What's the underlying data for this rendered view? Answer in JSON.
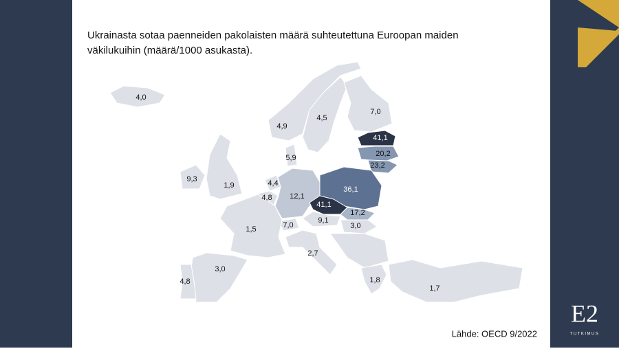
{
  "title": "Ukrainasta sotaa paenneiden pakolaisten määrä suhteutettuna Euroopan maiden väkilukuihin (määrä/1000 asukasta).",
  "source": "Lähde: OECD 9/2022",
  "logo": {
    "mark": "E2",
    "text": "TUTKIMUS"
  },
  "regions": [
    {
      "label": "4,0",
      "color": "#dde1e7"
    },
    {
      "label": "4,9",
      "color": "#dde1e7"
    },
    {
      "label": "4,5",
      "color": "#dde1e7"
    },
    {
      "label": "7,0",
      "color": "#dde1e7"
    },
    {
      "label": "41,1",
      "color": "#2b3446"
    },
    {
      "label": "20,2",
      "color": "#8496b0"
    },
    {
      "label": "23,2",
      "color": "#8496b0"
    },
    {
      "label": "5,9",
      "color": "#dde1e7"
    },
    {
      "label": "9,3",
      "color": "#dde1e7"
    },
    {
      "label": "1,9",
      "color": "#dde1e7"
    },
    {
      "label": "4,4",
      "color": "#dde1e7"
    },
    {
      "label": "4,8",
      "color": "#dde1e7"
    },
    {
      "label": "12,1",
      "color": "#c0c8d5"
    },
    {
      "label": "36,1",
      "color": "#5d7192"
    },
    {
      "label": "41,1",
      "color": "#2b3446"
    },
    {
      "label": "17,2",
      "color": "#a8b5c8"
    },
    {
      "label": "9,1",
      "color": "#dde1e7"
    },
    {
      "label": "3,0",
      "color": "#dde1e7"
    },
    {
      "label": "7,0",
      "color": "#dde1e7"
    },
    {
      "label": "1,5",
      "color": "#dde1e7"
    },
    {
      "label": "2,7",
      "color": "#dde1e7"
    },
    {
      "label": "3,0",
      "color": "#dde1e7"
    },
    {
      "label": "4,8",
      "color": "#dde1e7"
    },
    {
      "label": "1,8",
      "color": "#dde1e7"
    },
    {
      "label": "1,7",
      "color": "#dde1e7"
    }
  ]
}
